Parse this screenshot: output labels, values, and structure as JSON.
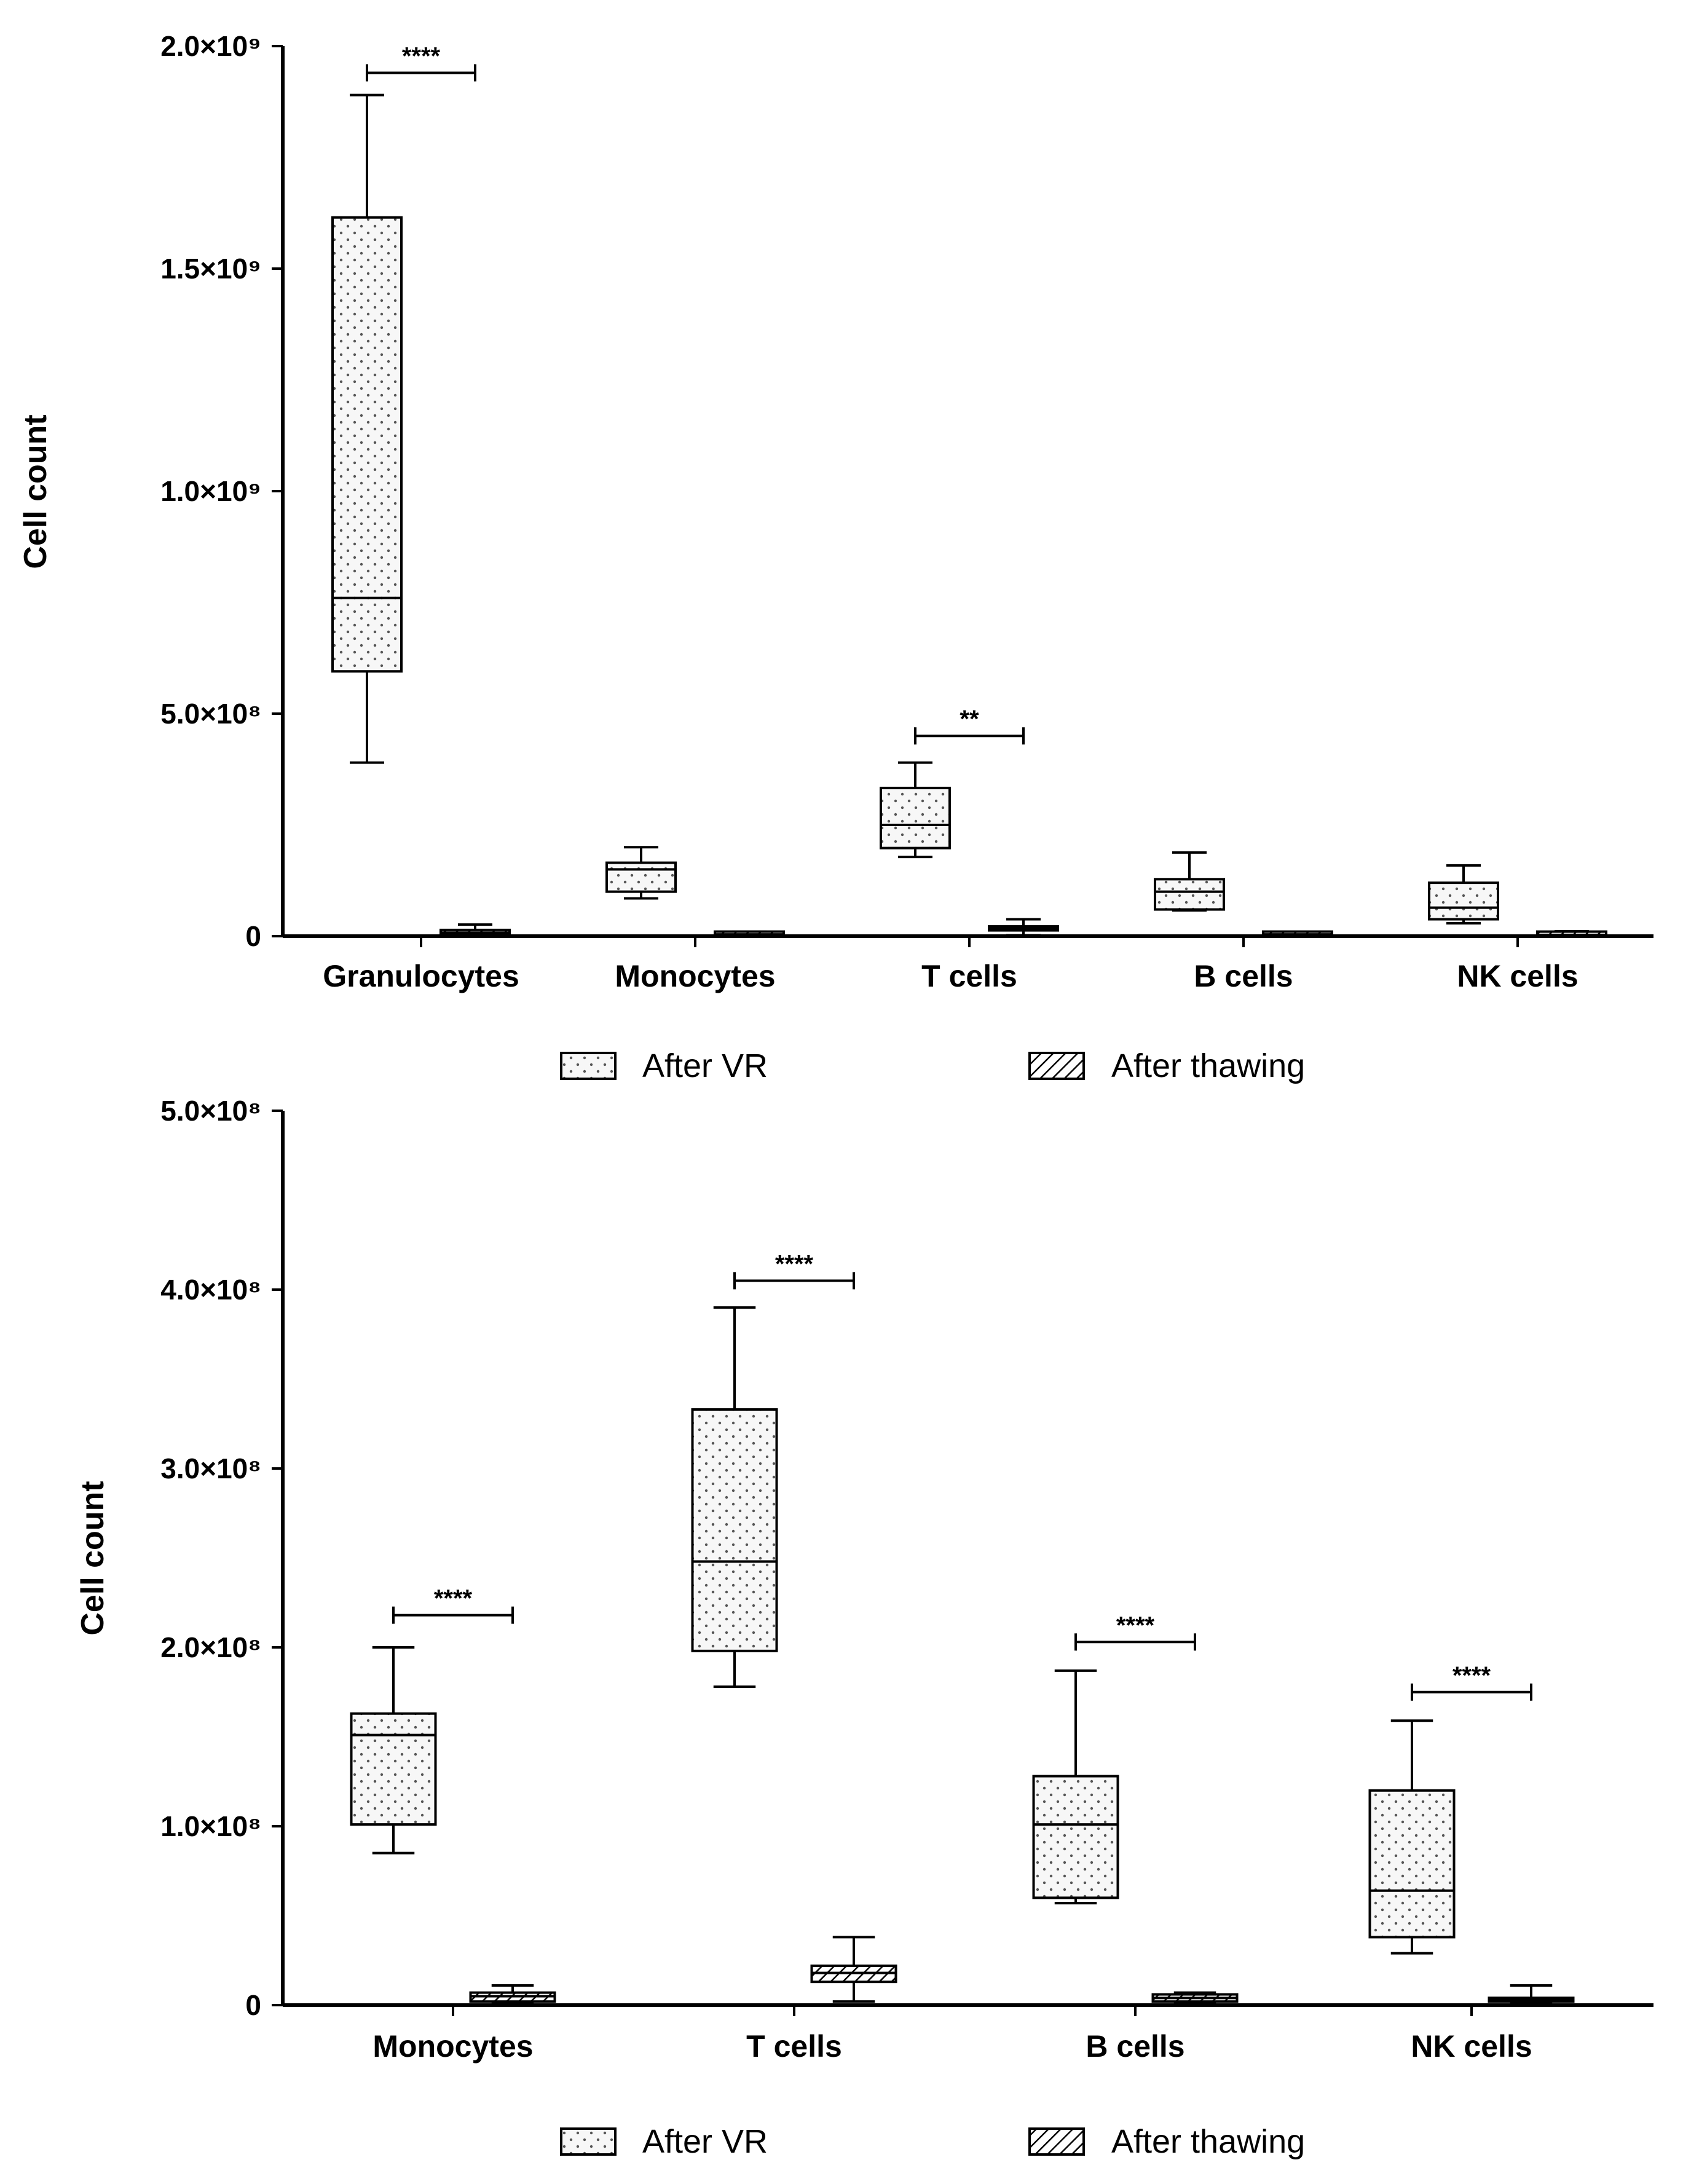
{
  "legend": {
    "after_vr": "After VR",
    "after_thawing": "After thawing"
  },
  "colors": {
    "line": "#000000",
    "background": "#ffffff"
  },
  "chart_data": [
    {
      "type": "box",
      "ylabel": "Cell count",
      "ylim": [
        0,
        2000000000
      ],
      "yticks": [
        {
          "value": 0,
          "label": "0"
        },
        {
          "value": 500000000,
          "label": "5.0×10⁸"
        },
        {
          "value": 1000000000,
          "label": "1.0×10⁹"
        },
        {
          "value": 1500000000,
          "label": "1.5×10⁹"
        },
        {
          "value": 2000000000,
          "label": "2.0×10⁹"
        }
      ],
      "categories": [
        "Granulocytes",
        "Monocytes",
        "T cells",
        "B cells",
        "NK cells"
      ],
      "legend_position": "bottom",
      "series": [
        {
          "name": "After VR",
          "pattern": "dots",
          "boxes": [
            {
              "min": 390000000,
              "q1": 595000000,
              "median": 760000000,
              "q3": 1615000000,
              "max": 1890000000
            },
            {
              "min": 85000000,
              "q1": 100000000,
              "median": 150000000,
              "q3": 165000000,
              "max": 200000000
            },
            {
              "min": 178000000,
              "q1": 198000000,
              "median": 250000000,
              "q3": 333000000,
              "max": 390000000
            },
            {
              "min": 58000000,
              "q1": 60000000,
              "median": 100000000,
              "q3": 128000000,
              "max": 188000000
            },
            {
              "min": 29000000,
              "q1": 38000000,
              "median": 64000000,
              "q3": 120000000,
              "max": 159000000
            }
          ]
        },
        {
          "name": "After thawing",
          "pattern": "hatch",
          "boxes": [
            {
              "min": 2000000,
              "q1": 4000000,
              "median": 8000000,
              "q3": 14000000,
              "max": 26000000
            },
            {
              "min": 1000000,
              "q1": 2000000,
              "median": 4000000,
              "q3": 6000000,
              "max": 10000000
            },
            {
              "min": 2000000,
              "q1": 13000000,
              "median": 18000000,
              "q3": 22000000,
              "max": 38000000
            },
            {
              "min": 1000000,
              "q1": 2000000,
              "median": 4000000,
              "q3": 6000000,
              "max": 8000000
            },
            {
              "min": 1000000,
              "q1": 2000000,
              "median": 3000000,
              "q3": 4000000,
              "max": 11000000
            }
          ]
        }
      ],
      "significance": [
        {
          "category_index": 0,
          "label": "****",
          "y": 1940000000
        },
        {
          "category_index": 2,
          "label": "**",
          "y": 450000000
        }
      ]
    },
    {
      "type": "box",
      "ylabel": "Cell count",
      "ylim": [
        0,
        500000000
      ],
      "yticks": [
        {
          "value": 0,
          "label": "0"
        },
        {
          "value": 100000000,
          "label": "1.0×10⁸"
        },
        {
          "value": 200000000,
          "label": "2.0×10⁸"
        },
        {
          "value": 300000000,
          "label": "3.0×10⁸"
        },
        {
          "value": 400000000,
          "label": "4.0×10⁸"
        },
        {
          "value": 500000000,
          "label": "5.0×10⁸"
        }
      ],
      "categories": [
        "Monocytes",
        "T cells",
        "B cells",
        "NK cells"
      ],
      "legend_position": "bottom",
      "series": [
        {
          "name": "After VR",
          "pattern": "dots",
          "boxes": [
            {
              "min": 85000000,
              "q1": 101000000,
              "median": 151000000,
              "q3": 163000000,
              "max": 200000000
            },
            {
              "min": 178000000,
              "q1": 198000000,
              "median": 248000000,
              "q3": 333000000,
              "max": 390000000
            },
            {
              "min": 57000000,
              "q1": 60000000,
              "median": 101000000,
              "q3": 128000000,
              "max": 187000000
            },
            {
              "min": 29000000,
              "q1": 38000000,
              "median": 64000000,
              "q3": 120000000,
              "max": 159000000
            }
          ]
        },
        {
          "name": "After thawing",
          "pattern": "hatch",
          "boxes": [
            {
              "min": 1000000,
              "q1": 2000000,
              "median": 5000000,
              "q3": 7000000,
              "max": 11000000
            },
            {
              "min": 2000000,
              "q1": 13000000,
              "median": 18000000,
              "q3": 22000000,
              "max": 38000000
            },
            {
              "min": 1000000,
              "q1": 2000000,
              "median": 4000000,
              "q3": 6000000,
              "max": 7000000
            },
            {
              "min": 1000000,
              "q1": 2000000,
              "median": 3000000,
              "q3": 4000000,
              "max": 11000000
            }
          ]
        }
      ],
      "significance": [
        {
          "category_index": 0,
          "label": "****",
          "y": 218000000
        },
        {
          "category_index": 1,
          "label": "****",
          "y": 405000000
        },
        {
          "category_index": 2,
          "label": "****",
          "y": 203000000
        },
        {
          "category_index": 3,
          "label": "****",
          "y": 175000000
        }
      ]
    }
  ]
}
